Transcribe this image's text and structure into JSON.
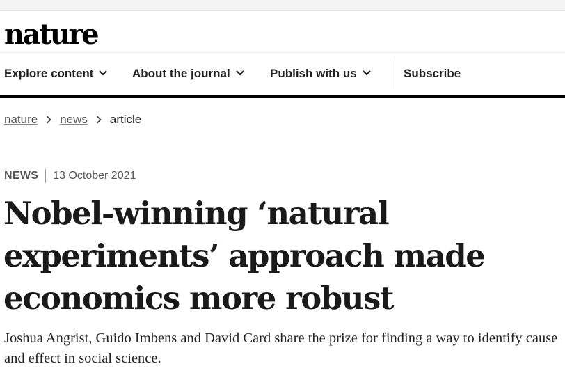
{
  "brand": {
    "logo_text": "nature"
  },
  "nav": {
    "items": [
      {
        "label": "Explore content",
        "icon": "chevron-down-icon"
      },
      {
        "label": "About the journal",
        "icon": "chevron-down-icon"
      },
      {
        "label": "Publish with us",
        "icon": "chevron-down-icon"
      }
    ],
    "subscribe_label": "Subscribe"
  },
  "breadcrumb": {
    "items": [
      "nature",
      "news"
    ],
    "current": "article",
    "separator_icon": "chevron-right-icon"
  },
  "article": {
    "type": "NEWS",
    "date": "13 October 2021",
    "headline": "Nobel-winning ‘natural experiments’ approach made economics more robust",
    "standfirst": "Joshua Angrist, Guido Imbens and David Card share the prize for finding a way to identify cause and effect in social science."
  },
  "colors": {
    "thick_bar": "#000000",
    "text": "#222222",
    "muted": "#555555"
  }
}
